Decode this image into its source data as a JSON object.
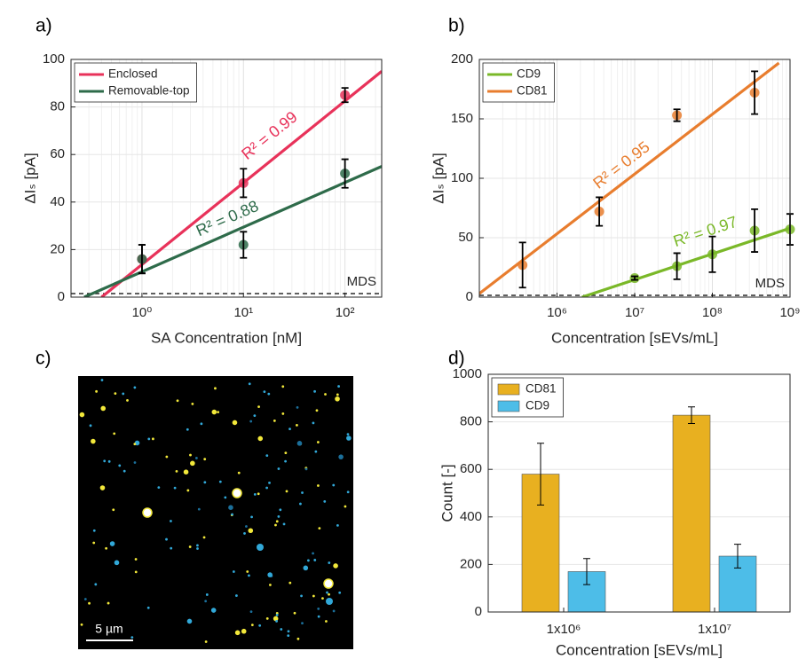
{
  "chart_data": [
    {
      "type": "scatter",
      "panel": "a)",
      "xlabel": "SA Concentration [nM]",
      "ylabel": "ΔIₛ [pA]",
      "xscale": "log",
      "xlim": [
        0.2,
        230
      ],
      "ylim": [
        0,
        100
      ],
      "xticks": [
        {
          "value": 1,
          "label": "10⁰"
        },
        {
          "value": 10,
          "label": "10¹"
        },
        {
          "value": 100,
          "label": "10²"
        }
      ],
      "yticks": [
        0,
        20,
        40,
        60,
        80,
        100
      ],
      "grid": true,
      "legend": "upper left",
      "reference_line": {
        "label": "MDS",
        "value": 1.5
      },
      "series": [
        {
          "name": "Enclosed",
          "color": "#e8325a",
          "x": [
            1,
            10,
            100
          ],
          "values": [
            16,
            48,
            85
          ],
          "errors": [
            6,
            6,
            3
          ],
          "fit": {
            "x": [
              0.4,
              230
            ],
            "y": [
              0,
              95
            ]
          },
          "annotation": "R² = 0.99"
        },
        {
          "name": "Removable-top",
          "color": "#2e6b4a",
          "x": [
            1,
            10,
            100
          ],
          "values": [
            16,
            22,
            52
          ],
          "errors": [
            6,
            5.5,
            6
          ],
          "fit": {
            "x": [
              0.27,
              230
            ],
            "y": [
              0,
              55
            ]
          },
          "annotation": "R² = 0.88"
        }
      ]
    },
    {
      "type": "scatter",
      "panel": "b)",
      "xlabel": "Concentration [sEVs/mL]",
      "ylabel": "ΔIₛ [pA]",
      "xscale": "log",
      "xlim": [
        100000,
        1000000000
      ],
      "ylim": [
        0,
        200
      ],
      "xticks": [
        {
          "value": 1000000,
          "label": "10⁶"
        },
        {
          "value": 10000000,
          "label": "10⁷"
        },
        {
          "value": 100000000,
          "label": "10⁸"
        },
        {
          "value": 1000000000,
          "label": "10⁹"
        }
      ],
      "yticks": [
        0,
        50,
        100,
        150,
        200
      ],
      "grid": true,
      "legend": "upper left",
      "reference_line": {
        "label": "MDS",
        "value": 1.5
      },
      "series": [
        {
          "name": "CD9",
          "color": "#7ab828",
          "x": [
            10000000,
            35000000,
            100000000,
            350000000,
            1000000000
          ],
          "values": [
            16,
            26,
            36,
            56,
            57
          ],
          "errors": [
            1.5,
            11,
            15,
            18,
            13
          ],
          "fit": {
            "x": [
              2100000,
              1000000000
            ],
            "y": [
              0,
              58
            ]
          },
          "annotation": "R² = 0.97"
        },
        {
          "name": "CD81",
          "color": "#e87d2e",
          "x": [
            360000,
            3500000,
            35000000,
            350000000
          ],
          "values": [
            27,
            72,
            153,
            172
          ],
          "errors": [
            19,
            12,
            5,
            18
          ],
          "fit": {
            "x": [
              100000,
              720000000
            ],
            "y": [
              3,
              197
            ]
          },
          "annotation": "R² = 0.95"
        }
      ]
    },
    {
      "type": "bar",
      "panel": "d)",
      "xlabel": "Concentration [sEVs/mL]",
      "ylabel": "Count [-]",
      "categories": [
        "1x10⁶",
        "1x10⁷"
      ],
      "ylim": [
        0,
        1000
      ],
      "yticks": [
        0,
        200,
        400,
        600,
        800,
        1000
      ],
      "grid": true,
      "legend": "upper left",
      "series": [
        {
          "name": "CD81",
          "color": "#e8b020",
          "values": [
            580,
            828
          ],
          "errors": [
            130,
            35
          ]
        },
        {
          "name": "CD9",
          "color": "#4dbde8",
          "values": [
            170,
            235
          ],
          "errors": [
            55,
            50
          ]
        }
      ]
    }
  ],
  "micrograph": {
    "panel": "c)",
    "scale_bar": "5 µm"
  }
}
